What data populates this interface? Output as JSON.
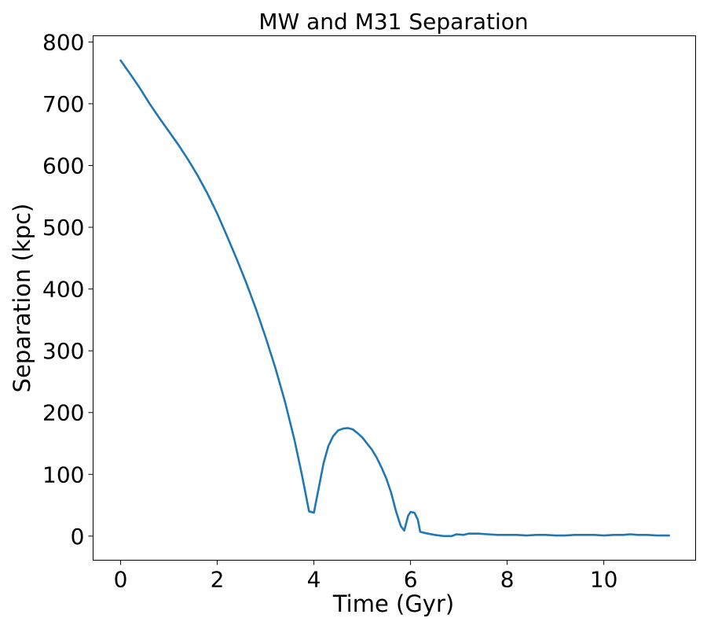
{
  "chart_data": {
    "type": "line",
    "title": "MW and M31 Separation",
    "xlabel": "Time (Gyr)",
    "ylabel": "Separation (kpc)",
    "xlim": [
      -0.57,
      11.9
    ],
    "ylim": [
      -39,
      810
    ],
    "xticks": [
      0,
      2,
      4,
      6,
      8,
      10
    ],
    "yticks": [
      0,
      100,
      200,
      300,
      400,
      500,
      600,
      700,
      800
    ],
    "grid": false,
    "legend": "none",
    "colors": {
      "series": "#1f77b4",
      "axes": "#000000"
    },
    "series": [
      {
        "x": [
          0,
          0.2,
          0.4,
          0.6,
          0.8,
          1.0,
          1.2,
          1.4,
          1.6,
          1.8,
          2.0,
          2.2,
          2.4,
          2.6,
          2.8,
          3.0,
          3.2,
          3.4,
          3.6,
          3.75,
          3.9,
          4.0,
          4.1,
          4.2,
          4.3,
          4.4,
          4.5,
          4.6,
          4.7,
          4.8,
          4.9,
          5.0,
          5.1,
          5.2,
          5.3,
          5.4,
          5.5,
          5.6,
          5.7,
          5.8,
          5.87,
          5.95,
          6.0,
          6.08,
          6.15,
          6.2,
          6.3,
          6.5,
          6.7,
          6.85,
          6.95,
          7.1,
          7.2,
          7.4,
          7.6,
          7.8,
          8.0,
          8.2,
          8.4,
          8.6,
          8.8,
          9.0,
          9.2,
          9.4,
          9.6,
          9.8,
          10.0,
          10.2,
          10.4,
          10.55,
          10.7,
          10.9,
          11.1,
          11.35
        ],
        "y": [
          770,
          748,
          725,
          700,
          677,
          655,
          633,
          609,
          583,
          554,
          522,
          486,
          449,
          410,
          368,
          322,
          273,
          218,
          155,
          100,
          40,
          38,
          78,
          118,
          146,
          162,
          171,
          174,
          175,
          173,
          167,
          160,
          150,
          140,
          127,
          111,
          93,
          70,
          40,
          16,
          9,
          33,
          39,
          38,
          27,
          7,
          5,
          2,
          0,
          0,
          3,
          2,
          4,
          4,
          3,
          2,
          2,
          2,
          1,
          2,
          2,
          1,
          1,
          2,
          2,
          2,
          1,
          2,
          2,
          3,
          2,
          2,
          1,
          1
        ]
      }
    ]
  }
}
